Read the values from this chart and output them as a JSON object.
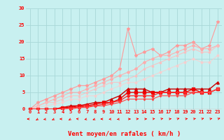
{
  "title": "",
  "xlabel": "Vent moyen/en rafales ( km/h )",
  "bg_color": "#c8f0f0",
  "grid_color": "#a8d8d8",
  "xlim": [
    -0.5,
    23.5
  ],
  "ylim": [
    0,
    30
  ],
  "xticks": [
    0,
    1,
    2,
    3,
    4,
    5,
    6,
    7,
    8,
    9,
    10,
    11,
    12,
    13,
    14,
    15,
    16,
    17,
    18,
    19,
    20,
    21,
    22,
    23
  ],
  "yticks": [
    0,
    5,
    10,
    15,
    20,
    25,
    30
  ],
  "series": [
    {
      "x": [
        0,
        1,
        2,
        3,
        4,
        5,
        6,
        7,
        8,
        9,
        10,
        11,
        12,
        13,
        14,
        15,
        16,
        17,
        18,
        19,
        20,
        21,
        22,
        23
      ],
      "y": [
        0,
        2,
        3,
        4,
        5,
        6,
        7,
        7,
        8,
        9,
        10,
        12,
        24,
        16,
        17,
        18,
        16,
        17,
        19,
        19,
        20,
        18,
        19,
        26
      ],
      "color": "#ff9999",
      "marker": "*",
      "markersize": 3,
      "linewidth": 0.8,
      "alpha": 1.0
    },
    {
      "x": [
        0,
        1,
        2,
        3,
        4,
        5,
        6,
        7,
        8,
        9,
        10,
        11,
        12,
        13,
        14,
        15,
        16,
        17,
        18,
        19,
        20,
        21,
        22,
        23
      ],
      "y": [
        0,
        1,
        2,
        3,
        4,
        5,
        5,
        6,
        7,
        8,
        9,
        10,
        11,
        12,
        14,
        15,
        16,
        16,
        17,
        18,
        19,
        18,
        18,
        19
      ],
      "color": "#ffaaaa",
      "marker": "D",
      "markersize": 2,
      "linewidth": 0.8,
      "alpha": 0.9
    },
    {
      "x": [
        0,
        1,
        2,
        3,
        4,
        5,
        6,
        7,
        8,
        9,
        10,
        11,
        12,
        13,
        14,
        15,
        16,
        17,
        18,
        19,
        20,
        21,
        22,
        23
      ],
      "y": [
        0,
        1,
        2,
        2,
        3,
        4,
        4,
        5,
        6,
        7,
        8,
        8,
        9,
        10,
        12,
        13,
        14,
        15,
        16,
        17,
        18,
        17,
        17,
        19
      ],
      "color": "#ffbbbb",
      "marker": "^",
      "markersize": 2,
      "linewidth": 0.8,
      "alpha": 0.8
    },
    {
      "x": [
        0,
        1,
        2,
        3,
        4,
        5,
        6,
        7,
        8,
        9,
        10,
        11,
        12,
        13,
        14,
        15,
        16,
        17,
        18,
        19,
        20,
        21,
        22,
        23
      ],
      "y": [
        0,
        0.5,
        1,
        1.5,
        2,
        3,
        3,
        4,
        4,
        5,
        6,
        7,
        8,
        8,
        9,
        10,
        11,
        12,
        13,
        14,
        15,
        14,
        14,
        16
      ],
      "color": "#ffcccc",
      "marker": "o",
      "markersize": 2,
      "linewidth": 0.8,
      "alpha": 0.7
    },
    {
      "x": [
        0,
        1,
        2,
        3,
        4,
        5,
        6,
        7,
        8,
        9,
        10,
        11,
        12,
        13,
        14,
        15,
        16,
        17,
        18,
        19,
        20,
        21,
        22,
        23
      ],
      "y": [
        0,
        0,
        0,
        0,
        0.5,
        1,
        1,
        1.5,
        2,
        2,
        3,
        4,
        6,
        6,
        6,
        5,
        5,
        6,
        6,
        6,
        6,
        6,
        6,
        8
      ],
      "color": "#cc0000",
      "marker": "^",
      "markersize": 2.5,
      "linewidth": 1.0,
      "alpha": 1.0
    },
    {
      "x": [
        0,
        1,
        2,
        3,
        4,
        5,
        6,
        7,
        8,
        9,
        10,
        11,
        12,
        13,
        14,
        15,
        16,
        17,
        18,
        19,
        20,
        21,
        22,
        23
      ],
      "y": [
        0,
        0,
        0,
        0,
        0.5,
        0.5,
        1,
        1,
        1.5,
        2,
        2,
        3,
        5,
        5,
        5,
        5,
        5,
        5,
        5,
        5,
        6,
        5,
        5,
        6
      ],
      "color": "#ee0000",
      "marker": "s",
      "markersize": 2.5,
      "linewidth": 1.0,
      "alpha": 1.0
    },
    {
      "x": [
        0,
        1,
        2,
        3,
        4,
        5,
        6,
        7,
        8,
        9,
        10,
        11,
        12,
        13,
        14,
        15,
        16,
        17,
        18,
        19,
        20,
        21,
        22,
        23
      ],
      "y": [
        0,
        0,
        0,
        0,
        0,
        0.5,
        0.5,
        1,
        1,
        1.5,
        2,
        2.5,
        4,
        4,
        4,
        4,
        5,
        5,
        5,
        5,
        5,
        5,
        5,
        6
      ],
      "color": "#ff2222",
      "marker": "D",
      "markersize": 2,
      "linewidth": 0.9,
      "alpha": 1.0
    },
    {
      "x": [
        0,
        1,
        2,
        3,
        4,
        5,
        6,
        7,
        8,
        9,
        10,
        11,
        12,
        13,
        14,
        15,
        16,
        17,
        18,
        19,
        20,
        21,
        22,
        23
      ],
      "y": [
        0,
        0,
        0,
        0,
        0,
        0,
        0.5,
        0.5,
        1,
        1,
        1.5,
        2,
        3,
        3,
        3,
        3,
        4,
        4,
        4,
        4,
        5,
        5,
        5,
        6
      ],
      "color": "#ff4444",
      "marker": "v",
      "markersize": 2,
      "linewidth": 0.8,
      "alpha": 1.0
    }
  ],
  "tick_fontsize": 5,
  "label_fontsize": 6.5
}
